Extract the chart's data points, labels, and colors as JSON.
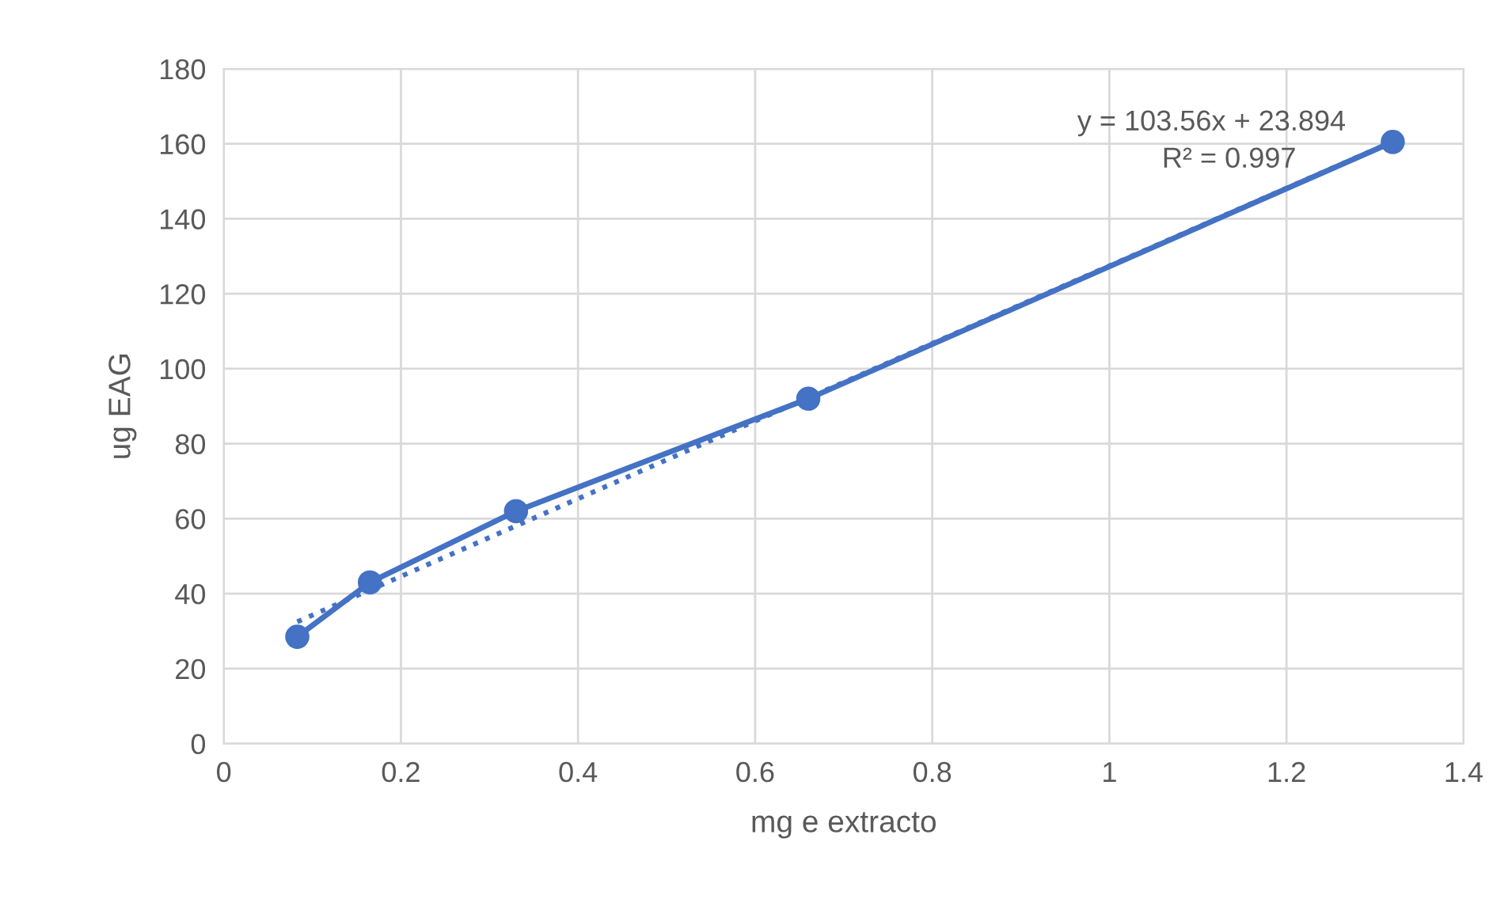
{
  "chart_data": {
    "type": "line",
    "xlabel": "mg e extracto",
    "ylabel": "ug EAG",
    "series": [
      {
        "color": "#4472c4",
        "marker": "circle",
        "line_style": "solid",
        "x": [
          0.083,
          0.165,
          0.33,
          0.66,
          1.32
        ],
        "values": [
          28.5,
          43,
          62,
          92,
          160.5
        ]
      },
      {
        "type": "line",
        "color": "#4472c4",
        "marker": "none",
        "line_style": "dotted",
        "x": [
          0.083,
          1.32
        ],
        "values": [
          32.5,
          160.6
        ]
      }
    ],
    "annotations": [
      "y = 103.56x + 23.894",
      "R² = 0.997"
    ],
    "xlim": [
      0,
      1.4
    ],
    "xticks": [
      0,
      0.2,
      0.4,
      0.6,
      0.8,
      1,
      1.2,
      1.4
    ],
    "ylim": [
      0,
      180
    ],
    "yticks": [
      0,
      20,
      40,
      60,
      80,
      100,
      120,
      140,
      160,
      180
    ],
    "grid": true,
    "legend": false
  }
}
